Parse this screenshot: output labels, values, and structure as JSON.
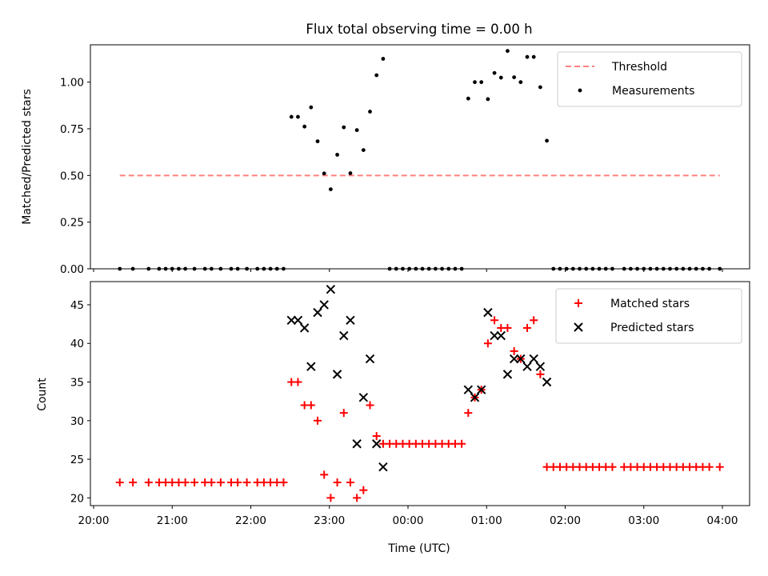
{
  "chart_data": [
    {
      "type": "scatter",
      "title": "Flux total observing time = 0.00 h",
      "xlabel": "",
      "ylabel": "Matched/Predicted stars",
      "xlim": [
        "20:00",
        "04:00"
      ],
      "ylim": [
        0,
        1.2
      ],
      "yticks": [
        0.0,
        0.25,
        0.5,
        0.75,
        1.0
      ],
      "ytick_labels": [
        "0.00",
        "0.25",
        "0.50",
        "0.75",
        "1.00"
      ],
      "legend": {
        "position": "top-right",
        "entries": [
          "Threshold",
          "Measurements"
        ]
      },
      "series": [
        {
          "name": "Threshold",
          "kind": "dashed-line",
          "color": "#ff8080",
          "points": [
            [
              "20:20",
              0.5
            ],
            [
              "23:59",
              0.5
            ],
            [
              "03:58",
              0.5
            ]
          ]
        },
        {
          "name": "Measurements",
          "kind": "dot",
          "color": "#000000",
          "points": [
            [
              "20:20",
              0.0
            ],
            [
              "20:30",
              0.0
            ],
            [
              "20:42",
              0.0
            ],
            [
              "20:50",
              0.0
            ],
            [
              "20:55",
              0.0
            ],
            [
              "21:00",
              0.0
            ],
            [
              "21:05",
              0.0
            ],
            [
              "21:10",
              0.0
            ],
            [
              "21:17",
              0.0
            ],
            [
              "21:25",
              0.0
            ],
            [
              "21:30",
              0.0
            ],
            [
              "21:37",
              0.0
            ],
            [
              "21:45",
              0.0
            ],
            [
              "21:50",
              0.0
            ],
            [
              "21:57",
              0.0
            ],
            [
              "22:05",
              0.0
            ],
            [
              "22:10",
              0.0
            ],
            [
              "22:15",
              0.0
            ],
            [
              "22:20",
              0.0
            ],
            [
              "22:25",
              0.0
            ],
            [
              "22:31",
              0.814
            ],
            [
              "22:36",
              0.814
            ],
            [
              "22:41",
              0.762
            ],
            [
              "22:46",
              0.865
            ],
            [
              "22:51",
              0.683
            ],
            [
              "22:56",
              0.511
            ],
            [
              "23:01",
              0.426
            ],
            [
              "23:06",
              0.611
            ],
            [
              "23:11",
              0.758
            ],
            [
              "23:16",
              0.512
            ],
            [
              "23:21",
              0.743
            ],
            [
              "23:26",
              0.636
            ],
            [
              "23:31",
              0.842
            ],
            [
              "23:36",
              1.037
            ],
            [
              "23:41",
              1.125
            ],
            [
              "23:46",
              0.0
            ],
            [
              "23:51",
              0.0
            ],
            [
              "23:56",
              0.0
            ],
            [
              "00:01",
              0.0
            ],
            [
              "00:06",
              0.0
            ],
            [
              "00:11",
              0.0
            ],
            [
              "00:16",
              0.0
            ],
            [
              "00:21",
              0.0
            ],
            [
              "00:26",
              0.0
            ],
            [
              "00:31",
              0.0
            ],
            [
              "00:36",
              0.0
            ],
            [
              "00:41",
              0.0
            ],
            [
              "00:46",
              0.912
            ],
            [
              "00:51",
              1.0
            ],
            [
              "00:56",
              1.0
            ],
            [
              "01:01",
              0.909
            ],
            [
              "01:06",
              1.049
            ],
            [
              "01:11",
              1.024
            ],
            [
              "01:16",
              1.167
            ],
            [
              "01:21",
              1.026
            ],
            [
              "01:26",
              1.0
            ],
            [
              "01:31",
              1.135
            ],
            [
              "01:36",
              1.135
            ],
            [
              "01:41",
              0.973
            ],
            [
              "01:46",
              0.686
            ],
            [
              "01:51",
              0.0
            ],
            [
              "01:56",
              0.0
            ],
            [
              "02:01",
              0.0
            ],
            [
              "02:06",
              0.0
            ],
            [
              "02:11",
              0.0
            ],
            [
              "02:16",
              0.0
            ],
            [
              "02:21",
              0.0
            ],
            [
              "02:26",
              0.0
            ],
            [
              "02:31",
              0.0
            ],
            [
              "02:36",
              0.0
            ],
            [
              "02:45",
              0.0
            ],
            [
              "02:50",
              0.0
            ],
            [
              "02:55",
              0.0
            ],
            [
              "03:00",
              0.0
            ],
            [
              "03:05",
              0.0
            ],
            [
              "03:10",
              0.0
            ],
            [
              "03:15",
              0.0
            ],
            [
              "03:20",
              0.0
            ],
            [
              "03:25",
              0.0
            ],
            [
              "03:30",
              0.0
            ],
            [
              "03:35",
              0.0
            ],
            [
              "03:40",
              0.0
            ],
            [
              "03:45",
              0.0
            ],
            [
              "03:50",
              0.0
            ],
            [
              "03:58",
              0.0
            ]
          ]
        }
      ]
    },
    {
      "type": "scatter",
      "title": "",
      "xlabel": "Time (UTC)",
      "ylabel": "Count",
      "xlim": [
        "20:00",
        "04:00"
      ],
      "xticks": [
        "20:00",
        "21:00",
        "22:00",
        "23:00",
        "00:00",
        "01:00",
        "02:00",
        "03:00",
        "04:00"
      ],
      "ylim": [
        19,
        48
      ],
      "yticks": [
        20,
        25,
        30,
        35,
        40,
        45
      ],
      "ytick_labels": [
        "20",
        "25",
        "30",
        "35",
        "40",
        "45"
      ],
      "legend": {
        "position": "top-right",
        "entries": [
          "Matched stars",
          "Predicted stars"
        ]
      },
      "series": [
        {
          "name": "Matched stars",
          "kind": "plus",
          "color": "#ff0000",
          "points": [
            [
              "20:20",
              22
            ],
            [
              "20:30",
              22
            ],
            [
              "20:42",
              22
            ],
            [
              "20:50",
              22
            ],
            [
              "20:55",
              22
            ],
            [
              "21:00",
              22
            ],
            [
              "21:05",
              22
            ],
            [
              "21:10",
              22
            ],
            [
              "21:17",
              22
            ],
            [
              "21:25",
              22
            ],
            [
              "21:30",
              22
            ],
            [
              "21:37",
              22
            ],
            [
              "21:45",
              22
            ],
            [
              "21:50",
              22
            ],
            [
              "21:57",
              22
            ],
            [
              "22:05",
              22
            ],
            [
              "22:10",
              22
            ],
            [
              "22:15",
              22
            ],
            [
              "22:20",
              22
            ],
            [
              "22:25",
              22
            ],
            [
              "22:31",
              35
            ],
            [
              "22:36",
              35
            ],
            [
              "22:41",
              32
            ],
            [
              "22:46",
              32
            ],
            [
              "22:51",
              30
            ],
            [
              "22:56",
              23
            ],
            [
              "23:01",
              20
            ],
            [
              "23:06",
              22
            ],
            [
              "23:11",
              31
            ],
            [
              "23:16",
              22
            ],
            [
              "23:21",
              20
            ],
            [
              "23:26",
              21
            ],
            [
              "23:31",
              32
            ],
            [
              "23:36",
              28
            ],
            [
              "23:41",
              27
            ],
            [
              "23:46",
              27
            ],
            [
              "23:51",
              27
            ],
            [
              "23:56",
              27
            ],
            [
              "00:01",
              27
            ],
            [
              "00:06",
              27
            ],
            [
              "00:11",
              27
            ],
            [
              "00:16",
              27
            ],
            [
              "00:21",
              27
            ],
            [
              "00:26",
              27
            ],
            [
              "00:31",
              27
            ],
            [
              "00:36",
              27
            ],
            [
              "00:41",
              27
            ],
            [
              "00:46",
              31
            ],
            [
              "00:51",
              33
            ],
            [
              "00:56",
              34
            ],
            [
              "01:01",
              40
            ],
            [
              "01:06",
              43
            ],
            [
              "01:11",
              42
            ],
            [
              "01:16",
              42
            ],
            [
              "01:21",
              39
            ],
            [
              "01:26",
              38
            ],
            [
              "01:31",
              42
            ],
            [
              "01:36",
              43
            ],
            [
              "01:41",
              36
            ],
            [
              "01:46",
              24
            ],
            [
              "01:51",
              24
            ],
            [
              "01:56",
              24
            ],
            [
              "02:01",
              24
            ],
            [
              "02:06",
              24
            ],
            [
              "02:11",
              24
            ],
            [
              "02:16",
              24
            ],
            [
              "02:21",
              24
            ],
            [
              "02:26",
              24
            ],
            [
              "02:31",
              24
            ],
            [
              "02:36",
              24
            ],
            [
              "02:45",
              24
            ],
            [
              "02:50",
              24
            ],
            [
              "02:55",
              24
            ],
            [
              "03:00",
              24
            ],
            [
              "03:05",
              24
            ],
            [
              "03:10",
              24
            ],
            [
              "03:15",
              24
            ],
            [
              "03:20",
              24
            ],
            [
              "03:25",
              24
            ],
            [
              "03:30",
              24
            ],
            [
              "03:35",
              24
            ],
            [
              "03:40",
              24
            ],
            [
              "03:45",
              24
            ],
            [
              "03:50",
              24
            ],
            [
              "03:58",
              24
            ]
          ]
        },
        {
          "name": "Predicted stars",
          "kind": "x",
          "color": "#000000",
          "points": [
            [
              "22:31",
              43
            ],
            [
              "22:36",
              43
            ],
            [
              "22:41",
              42
            ],
            [
              "22:46",
              37
            ],
            [
              "22:51",
              44
            ],
            [
              "22:56",
              45
            ],
            [
              "23:01",
              47
            ],
            [
              "23:06",
              36
            ],
            [
              "23:11",
              41
            ],
            [
              "23:16",
              43
            ],
            [
              "23:21",
              27
            ],
            [
              "23:26",
              33
            ],
            [
              "23:31",
              38
            ],
            [
              "23:36",
              27
            ],
            [
              "23:41",
              24
            ],
            [
              "00:46",
              34
            ],
            [
              "00:51",
              33
            ],
            [
              "00:56",
              34
            ],
            [
              "01:01",
              44
            ],
            [
              "01:06",
              41
            ],
            [
              "01:11",
              41
            ],
            [
              "01:16",
              36
            ],
            [
              "01:21",
              38
            ],
            [
              "01:26",
              38
            ],
            [
              "01:31",
              37
            ],
            [
              "01:36",
              38
            ],
            [
              "01:41",
              37
            ],
            [
              "01:46",
              35
            ]
          ]
        }
      ]
    }
  ]
}
